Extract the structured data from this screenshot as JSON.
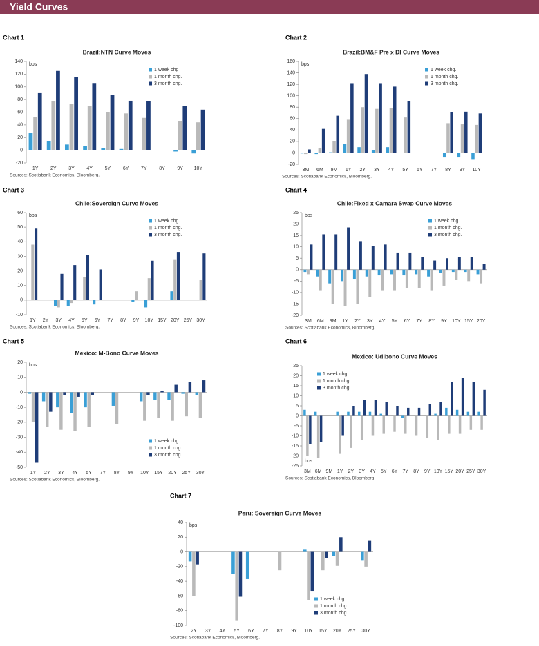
{
  "header": {
    "title": "Yield Curves"
  },
  "chart_data": [
    {
      "label": "Chart 1",
      "type": "bar",
      "title": "Brazil:NTN Curve Moves",
      "y_label": "bps",
      "categories": [
        "1Y",
        "2Y",
        "3Y",
        "4Y",
        "5Y",
        "6Y",
        "7Y",
        "8Y",
        "9Y",
        "10Y"
      ],
      "series": [
        {
          "name": "1 week chg",
          "color": "#3a9fd6",
          "values": [
            27,
            14,
            9,
            7,
            3,
            2,
            null,
            null,
            -2,
            -5
          ]
        },
        {
          "name": "1 month chg.",
          "color": "#b9b9b9",
          "values": [
            52,
            77,
            73,
            70,
            60,
            58,
            51,
            null,
            46,
            44
          ]
        },
        {
          "name": "3 month chg.",
          "color": "#1f3d78",
          "values": [
            90,
            125,
            115,
            106,
            87,
            78,
            77,
            null,
            70,
            64
          ]
        }
      ],
      "ylim": [
        -20,
        140
      ],
      "yticks": [
        -20,
        0,
        20,
        40,
        60,
        80,
        100,
        120,
        140
      ],
      "legend": "upper right",
      "source": "Sources: Scotiabank Economics, Bloomberg."
    },
    {
      "label": "Chart 2",
      "type": "bar",
      "title": "Brazil:BM&F Pre x DI Curve Moves",
      "y_label": "bps",
      "categories": [
        "3M",
        "6M",
        "9M",
        "1Y",
        "2Y",
        "3Y",
        "4Y",
        "5Y",
        "6Y",
        "7Y",
        "8Y",
        "9Y",
        "10Y"
      ],
      "series": [
        {
          "name": "1 week chg.",
          "color": "#3a9fd6",
          "values": [
            -1,
            -2,
            1,
            16,
            10,
            5,
            10,
            null,
            null,
            null,
            -8,
            -8,
            -12
          ]
        },
        {
          "name": "1 month chg.",
          "color": "#b9b9b9",
          "values": [
            -2,
            9,
            20,
            58,
            80,
            77,
            78,
            62,
            null,
            null,
            52,
            50,
            49
          ]
        },
        {
          "name": "3 month chg.",
          "color": "#1f3d78",
          "values": [
            6,
            42,
            65,
            122,
            138,
            122,
            116,
            90,
            null,
            null,
            71,
            72,
            69
          ]
        }
      ],
      "ylim": [
        -20,
        160
      ],
      "yticks": [
        -20,
        0,
        20,
        40,
        60,
        80,
        100,
        120,
        140,
        160
      ],
      "legend": "upper right",
      "source": "Sources: Scotiabank Economics, Bloomberg."
    },
    {
      "label": "Chart 3",
      "type": "bar",
      "title": "Chile:Sovereign Curve Moves",
      "y_label": "bps",
      "categories": [
        "1Y",
        "2Y",
        "3Y",
        "4Y",
        "5Y",
        "6Y",
        "7Y",
        "8Y",
        "9Y",
        "10Y",
        "15Y",
        "20Y",
        "25Y",
        "30Y"
      ],
      "series": [
        {
          "name": "1 week chg.",
          "color": "#3a9fd6",
          "values": [
            null,
            null,
            -4,
            -4,
            null,
            -3,
            null,
            null,
            -1,
            -5,
            null,
            6,
            null,
            null
          ]
        },
        {
          "name": "1 month chg.",
          "color": "#b9b9b9",
          "values": [
            38,
            null,
            -5,
            -2,
            16,
            null,
            null,
            null,
            6,
            15,
            null,
            28,
            null,
            14
          ]
        },
        {
          "name": "3 month chg.",
          "color": "#1f3d78",
          "values": [
            49,
            null,
            18,
            24,
            31,
            21,
            null,
            null,
            null,
            27,
            null,
            33,
            null,
            32
          ]
        }
      ],
      "ylim": [
        -10,
        60
      ],
      "yticks": [
        -10,
        0,
        10,
        20,
        30,
        40,
        50,
        60
      ],
      "legend": "upper right",
      "source": "Sources: Scotiabank Economics, Bloomberg."
    },
    {
      "label": "Chart 4",
      "type": "bar",
      "title": "Chile:Fixed x Camara Swap Curve Moves",
      "y_label": "bps",
      "categories": [
        "3M",
        "6M",
        "9M",
        "1Y",
        "2Y",
        "3Y",
        "4Y",
        "5Y",
        "6Y",
        "7Y",
        "8Y",
        "9Y",
        "10Y",
        "15Y",
        "20Y"
      ],
      "series": [
        {
          "name": "1 week chg.",
          "color": "#3a9fd6",
          "values": [
            -1,
            -3,
            -6,
            -5,
            -4,
            -3,
            -2.5,
            -2,
            -2.5,
            -2,
            -3,
            -1.5,
            -1,
            -1,
            -2
          ]
        },
        {
          "name": "1 month chg.",
          "color": "#b9b9b9",
          "values": [
            -2,
            -9,
            -15,
            -16,
            -15,
            -12,
            -9,
            -9,
            -8,
            -8,
            -9,
            -7,
            -4.5,
            -5,
            -6
          ]
        },
        {
          "name": "3 month chg.",
          "color": "#1f3d78",
          "values": [
            11,
            15.5,
            15.5,
            18.5,
            12.5,
            10.5,
            11,
            7.5,
            7.5,
            5.5,
            4,
            5,
            5.5,
            5.5,
            2.5
          ]
        }
      ],
      "ylim": [
        -20,
        25
      ],
      "yticks": [
        -20,
        -15,
        -10,
        -5,
        0,
        5,
        10,
        15,
        20,
        25
      ],
      "legend": "upper right",
      "source": "Sources: Scotiabank Economics, Bloomberg."
    },
    {
      "label": "Chart 5",
      "type": "bar",
      "title": "Mexico: M-Bono Curve Moves",
      "y_label": "bps",
      "categories": [
        "1Y",
        "2Y",
        "3Y",
        "4Y",
        "5Y",
        "7Y",
        "8Y",
        "9Y",
        "10Y",
        "15Y",
        "20Y",
        "25Y",
        "30Y"
      ],
      "series": [
        {
          "name": "1 week chg.",
          "color": "#3a9fd6",
          "values": [
            -1,
            -6,
            -10,
            -14,
            -10,
            null,
            -9,
            null,
            -6,
            -5,
            -5,
            -1,
            -2
          ]
        },
        {
          "name": "1 month chg.",
          "color": "#b9b9b9",
          "values": [
            -20,
            -23,
            -25,
            -26,
            -23,
            null,
            -21,
            null,
            -19,
            -17,
            -19,
            -16,
            -17
          ]
        },
        {
          "name": "3 month chg.",
          "color": "#1f3d78",
          "values": [
            -47,
            -13,
            -2,
            -3,
            -2,
            null,
            null,
            null,
            -2,
            1,
            5,
            7,
            8
          ]
        }
      ],
      "ylim": [
        -50,
        20
      ],
      "yticks": [
        -50,
        -40,
        -30,
        -20,
        -10,
        0,
        10,
        20
      ],
      "legend": "lower right",
      "source": "Sources: Scotiabank Economics, Bloomberg."
    },
    {
      "label": "Chart 6",
      "type": "bar",
      "title": "Mexico: Udibono Curve Moves",
      "y_label": "bps",
      "categories": [
        "3M",
        "6M",
        "9M",
        "1Y",
        "2Y",
        "3Y",
        "4Y",
        "5Y",
        "6Y",
        "7Y",
        "8Y",
        "9Y",
        "10Y",
        "15Y",
        "20Y",
        "25Y",
        "30Y"
      ],
      "series": [
        {
          "name": "1 week chg.",
          "color": "#3a9fd6",
          "values": [
            3,
            2,
            null,
            2,
            2,
            2,
            2,
            1,
            0,
            -1,
            0,
            0,
            1,
            4,
            3,
            2,
            2
          ]
        },
        {
          "name": "1 month chg.",
          "color": "#b9b9b9",
          "values": [
            -20,
            -21,
            null,
            -19,
            -16,
            -12,
            -10,
            -9,
            -8,
            -9,
            -10,
            -11,
            -12,
            -9,
            -9,
            -7,
            -7
          ]
        },
        {
          "name": "3 month chg.",
          "color": "#1f3d78",
          "values": [
            -14,
            -13,
            null,
            -10,
            5,
            8,
            8,
            7,
            5,
            4,
            4,
            6,
            7,
            17,
            19,
            17,
            13
          ]
        }
      ],
      "ylim": [
        -25,
        25
      ],
      "yticks": [
        -25,
        -20,
        -15,
        -10,
        -5,
        0,
        5,
        10,
        15,
        20,
        25
      ],
      "legend": "upper left",
      "source": "Sources: Scotiabank Economics, Bloomberg"
    },
    {
      "label": "Chart 7",
      "type": "bar",
      "title": "Peru: Sovereign Curve Moves",
      "y_label": "bps",
      "categories": [
        "2Y",
        "3Y",
        "4Y",
        "5Y",
        "6Y",
        "7Y",
        "8Y",
        "9Y",
        "10Y",
        "15Y",
        "20Y",
        "25Y",
        "30Y"
      ],
      "series": [
        {
          "name": "1 week chg.",
          "color": "#3a9fd6",
          "values": [
            -13,
            null,
            null,
            -30,
            -37,
            null,
            null,
            null,
            3,
            null,
            -6,
            null,
            -12
          ]
        },
        {
          "name": "1 month chg.",
          "color": "#b9b9b9",
          "values": [
            -60,
            null,
            null,
            -94,
            null,
            null,
            -25,
            null,
            -66,
            -25,
            -19,
            null,
            -20
          ]
        },
        {
          "name": "3 month chg.",
          "color": "#1f3d78",
          "values": [
            -17,
            null,
            null,
            -61,
            null,
            null,
            null,
            null,
            -54,
            -8,
            20,
            null,
            15
          ]
        }
      ],
      "ylim": [
        -100,
        40
      ],
      "yticks": [
        -100,
        -80,
        -60,
        -40,
        -20,
        0,
        20,
        40
      ],
      "legend": "lower right",
      "source": "Sources: Scotiabank Economics, Bloomberg."
    }
  ]
}
